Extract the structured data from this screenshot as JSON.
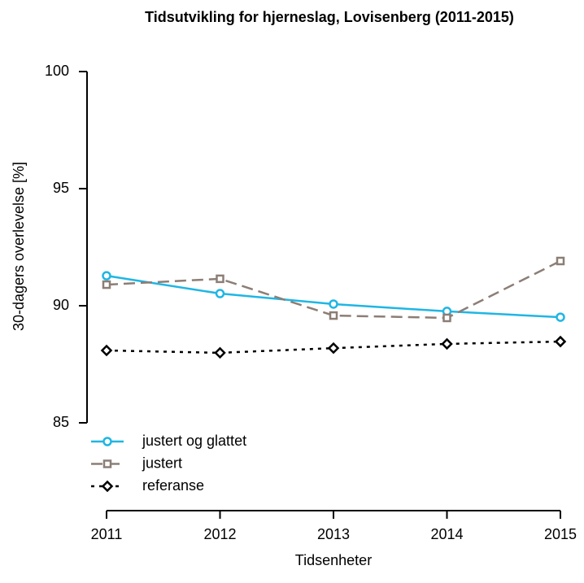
{
  "chart_data": {
    "type": "line",
    "title": "Tidsutvikling for hjerneslag, Lovisenberg (2011-2015)",
    "xlabel": "Tidsenheter",
    "ylabel": "30-dagers overlevelse [%]",
    "x": [
      2011,
      2012,
      2013,
      2014,
      2015
    ],
    "series": [
      {
        "name": "justert og glattet",
        "color": "#1fb6e4",
        "marker": "circle",
        "linestyle": "solid",
        "values": [
          91.28,
          90.52,
          90.07,
          89.76,
          89.51
        ]
      },
      {
        "name": "justert",
        "color": "#8c7e76",
        "marker": "square",
        "linestyle": "dashed",
        "values": [
          90.9,
          91.15,
          89.58,
          89.48,
          91.91
        ]
      },
      {
        "name": "referanse",
        "color": "#000000",
        "marker": "diamond",
        "linestyle": "dotted",
        "values": [
          88.09,
          87.99,
          88.19,
          88.37,
          88.47
        ]
      }
    ],
    "xlim": [
      2011,
      2015
    ],
    "xticks": [
      2011,
      2012,
      2013,
      2014,
      2015
    ],
    "ylim": [
      81.25,
      100
    ],
    "yticks": [
      85,
      90,
      95,
      100
    ],
    "legend": "bottomleft"
  }
}
